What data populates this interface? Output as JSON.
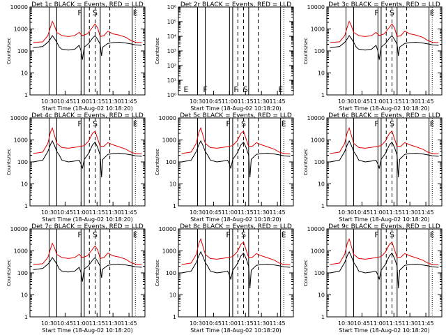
{
  "figure": {
    "colors": {
      "events": "#000000",
      "lld": "#e00000",
      "axis": "#000000",
      "background": "#ffffff"
    }
  },
  "chart_data": [
    {
      "type": "line",
      "title": "Det 1c BLACK = Events, RED = LLD",
      "ylabel": "Counts/sec",
      "xlabel": "Start Time (18-Aug-02 10:18:20)",
      "xticks": [
        "10:30",
        "10:45",
        "11:00",
        "11:15",
        "11:30",
        "11:45"
      ],
      "yscale": "log",
      "ylim": [
        1,
        10000
      ],
      "yticks": [
        "1",
        "10",
        "100",
        "1000",
        "10000"
      ],
      "flags": [
        "F",
        "S",
        "E"
      ],
      "profile": "p1"
    },
    {
      "type": "line",
      "title": "Det 2r BLACK = Events, RED = LLD",
      "ylabel": "Counts/sec",
      "xlabel": "Start Time (18-Aug-02 10:18:20)",
      "xticks": [
        "10:30",
        "10:45",
        "11:00",
        "11:15",
        "11:30",
        "11:45"
      ],
      "yscale": "log",
      "ylim": [
        1,
        1000000
      ],
      "yticks": [
        "10⁰",
        "10¹",
        "10²",
        "10³",
        "10⁴",
        "10⁵",
        "10⁶"
      ],
      "flags": [
        "E",
        "F",
        "F",
        "S",
        "E"
      ],
      "profile": "empty"
    },
    {
      "type": "line",
      "title": "Det 3c BLACK = Events, RED = LLD",
      "ylabel": "Counts/sec",
      "xlabel": "Start Time (18-Aug-02 10:18:20)",
      "xticks": [
        "10:30",
        "10:45",
        "11:00",
        "11:15",
        "11:30",
        "11:45"
      ],
      "yscale": "log",
      "ylim": [
        1,
        10000
      ],
      "yticks": [
        "1",
        "10",
        "100",
        "1000",
        "10000"
      ],
      "flags": [
        "F",
        "S",
        "E"
      ],
      "profile": "p1"
    },
    {
      "type": "line",
      "title": "Det 4c BLACK = Events, RED = LLD",
      "ylabel": "Counts/sec",
      "xlabel": "Start Time (18-Aug-02 10:18:20)",
      "xticks": [
        "10:30",
        "10:45",
        "11:00",
        "11:15",
        "11:30",
        "11:45"
      ],
      "yscale": "log",
      "ylim": [
        1,
        10000
      ],
      "yticks": [
        "1",
        "10",
        "100",
        "1000",
        "10000"
      ],
      "flags": [
        "F",
        "S",
        "E"
      ],
      "profile": "p2"
    },
    {
      "type": "line",
      "title": "Det 5c BLACK = Events, RED = LLD",
      "ylabel": "Counts/sec",
      "xlabel": "Start Time (18-Aug-02 10:18:20)",
      "xticks": [
        "10:30",
        "10:45",
        "11:00",
        "11:15",
        "11:30",
        "11:45"
      ],
      "yscale": "log",
      "ylim": [
        1,
        10000
      ],
      "yticks": [
        "1",
        "10",
        "100",
        "1000",
        "10000"
      ],
      "flags": [
        "F",
        "S",
        "E"
      ],
      "profile": "p2"
    },
    {
      "type": "line",
      "title": "Det 6c BLACK = Events, RED = LLD",
      "ylabel": "Counts/sec",
      "xlabel": "Start Time (18-Aug-02 10:18:20)",
      "xticks": [
        "10:30",
        "10:45",
        "11:00",
        "11:15",
        "11:30",
        "11:45"
      ],
      "yscale": "log",
      "ylim": [
        1,
        10000
      ],
      "yticks": [
        "1",
        "10",
        "100",
        "1000",
        "10000"
      ],
      "flags": [
        "F",
        "S",
        "E"
      ],
      "profile": "p2"
    },
    {
      "type": "line",
      "title": "Det 7c BLACK = Events, RED = LLD",
      "ylabel": "Counts/sec",
      "xlabel": "Start Time (18-Aug-02 10:18:20)",
      "xticks": [
        "10:30",
        "10:45",
        "11:00",
        "11:15",
        "11:30",
        "11:45"
      ],
      "yscale": "log",
      "ylim": [
        1,
        10000
      ],
      "yticks": [
        "1",
        "10",
        "100",
        "1000",
        "10000"
      ],
      "flags": [
        "F",
        "S",
        "E"
      ],
      "profile": "p1"
    },
    {
      "type": "line",
      "title": "Det 8c BLACK = Events, RED = LLD",
      "ylabel": "Counts/sec",
      "xlabel": "Start Time (18-Aug-02 10:18:20)",
      "xticks": [
        "10:30",
        "10:45",
        "11:00",
        "11:15",
        "11:30",
        "11:45"
      ],
      "yscale": "log",
      "ylim": [
        1,
        10000
      ],
      "yticks": [
        "1",
        "10",
        "100",
        "1000",
        "10000"
      ],
      "flags": [
        "F",
        "S",
        "E"
      ],
      "profile": "p2"
    },
    {
      "type": "line",
      "title": "Det 9c BLACK = Events, RED = LLD",
      "ylabel": "Counts/sec",
      "xlabel": "Start Time (18-Aug-02 10:18:20)",
      "xticks": [
        "10:30",
        "10:45",
        "11:00",
        "11:15",
        "11:30",
        "11:45"
      ],
      "yscale": "log",
      "ylim": [
        1,
        10000
      ],
      "yticks": [
        "1",
        "10",
        "100",
        "1000",
        "10000"
      ],
      "flags": [
        "F",
        "S",
        "E"
      ],
      "profile": "p2"
    }
  ],
  "profiles": {
    "p1": {
      "lld": [
        [
          10.25,
          240
        ],
        [
          10.4,
          260
        ],
        [
          10.48,
          500
        ],
        [
          10.52,
          1200
        ],
        [
          10.55,
          2200
        ],
        [
          10.58,
          1500
        ],
        [
          10.62,
          700
        ],
        [
          10.7,
          500
        ],
        [
          10.8,
          450
        ],
        [
          10.9,
          500
        ],
        [
          10.97,
          700
        ],
        [
          11.02,
          500
        ],
        [
          11.1,
          600
        ],
        [
          11.18,
          1200
        ],
        [
          11.22,
          1700
        ],
        [
          11.26,
          1100
        ],
        [
          11.3,
          450
        ],
        [
          11.36,
          500
        ],
        [
          11.42,
          800
        ],
        [
          11.5,
          600
        ],
        [
          11.6,
          520
        ],
        [
          11.7,
          420
        ],
        [
          11.78,
          300
        ],
        [
          11.85,
          250
        ],
        [
          11.95,
          240
        ]
      ],
      "events": [
        [
          10.25,
          140
        ],
        [
          10.4,
          160
        ],
        [
          10.48,
          250
        ],
        [
          10.52,
          350
        ],
        [
          10.55,
          500
        ],
        [
          10.58,
          380
        ],
        [
          10.62,
          250
        ],
        [
          10.66,
          150
        ],
        [
          10.7,
          120
        ],
        [
          10.8,
          110
        ],
        [
          10.9,
          120
        ],
        [
          10.97,
          180
        ],
        [
          11.0,
          100
        ],
        [
          11.02,
          40
        ],
        [
          11.05,
          150
        ],
        [
          11.12,
          220
        ],
        [
          11.18,
          380
        ],
        [
          11.22,
          500
        ],
        [
          11.26,
          330
        ],
        [
          11.3,
          200
        ],
        [
          11.32,
          60
        ],
        [
          11.34,
          150
        ],
        [
          11.42,
          220
        ],
        [
          11.5,
          240
        ],
        [
          11.6,
          250
        ],
        [
          11.7,
          230
        ],
        [
          11.78,
          210
        ],
        [
          11.85,
          190
        ],
        [
          11.95,
          180
        ]
      ]
    },
    "p2": {
      "lld": [
        [
          10.25,
          240
        ],
        [
          10.4,
          280
        ],
        [
          10.48,
          700
        ],
        [
          10.52,
          2200
        ],
        [
          10.55,
          3500
        ],
        [
          10.58,
          1800
        ],
        [
          10.62,
          700
        ],
        [
          10.7,
          450
        ],
        [
          10.8,
          420
        ],
        [
          10.9,
          460
        ],
        [
          10.97,
          500
        ],
        [
          11.05,
          550
        ],
        [
          11.12,
          900
        ],
        [
          11.18,
          2000
        ],
        [
          11.22,
          2500
        ],
        [
          11.26,
          1100
        ],
        [
          11.3,
          500
        ],
        [
          11.36,
          520
        ],
        [
          11.42,
          750
        ],
        [
          11.5,
          600
        ],
        [
          11.6,
          480
        ],
        [
          11.7,
          380
        ],
        [
          11.78,
          280
        ],
        [
          11.85,
          240
        ],
        [
          11.95,
          230
        ]
      ],
      "events": [
        [
          10.25,
          100
        ],
        [
          10.4,
          120
        ],
        [
          10.48,
          300
        ],
        [
          10.52,
          600
        ],
        [
          10.55,
          900
        ],
        [
          10.58,
          600
        ],
        [
          10.62,
          300
        ],
        [
          10.66,
          200
        ],
        [
          10.7,
          120
        ],
        [
          10.8,
          100
        ],
        [
          10.9,
          110
        ],
        [
          10.97,
          120
        ],
        [
          11.0,
          80
        ],
        [
          11.02,
          50
        ],
        [
          11.05,
          130
        ],
        [
          11.12,
          250
        ],
        [
          11.18,
          600
        ],
        [
          11.22,
          800
        ],
        [
          11.26,
          450
        ],
        [
          11.3,
          200
        ],
        [
          11.32,
          20
        ],
        [
          11.34,
          130
        ],
        [
          11.42,
          220
        ],
        [
          11.5,
          240
        ],
        [
          11.6,
          250
        ],
        [
          11.7,
          230
        ],
        [
          11.78,
          210
        ],
        [
          11.85,
          190
        ],
        [
          11.95,
          180
        ]
      ]
    },
    "empty": {
      "lld": [],
      "events": []
    }
  },
  "markers": {
    "solid": [
      10.5,
      10.62,
      11.0,
      11.05,
      11.3,
      11.8
    ],
    "dashed": [
      11.13,
      11.22,
      11.45
    ],
    "dotted": [
      11.85
    ],
    "flag_times_standard": [
      10.98,
      11.22,
      11.85
    ],
    "flag_times_det2": [
      10.32,
      10.62,
      11.1,
      11.25,
      11.8
    ]
  },
  "xrange": [
    10.2,
    12.0
  ]
}
